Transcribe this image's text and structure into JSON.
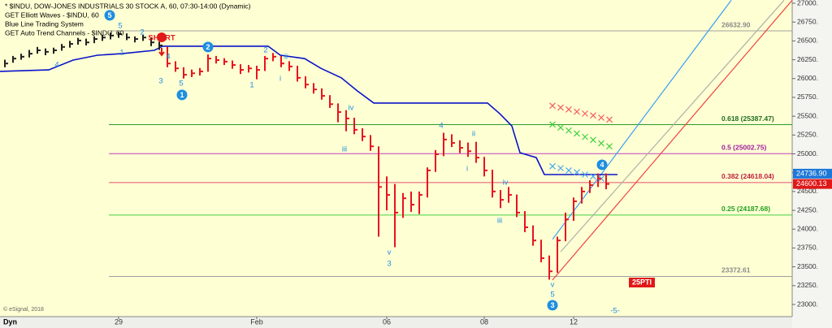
{
  "chart_data": {
    "type": "ohlc",
    "header_lines": [
      "* $INDU, DOW-JONES INDUSTRIALS 30 STOCK A, 60, 07:30-14:00 (Dynamic)",
      "GET Elliott Waves - $INDU, 60",
      "Blue Line Trading System",
      "GET Auto Trend Channels - $INDU, 60"
    ],
    "copyright": "© eSignal, 2018",
    "interval_label": "Dyn",
    "background": "#ffffd4",
    "xlim": [
      -0.6,
      96.9
    ],
    "ylim": [
      23000,
      27000
    ],
    "xticks": [
      {
        "value": 14,
        "label": "29"
      },
      {
        "value": 31,
        "label": "Feb"
      },
      {
        "value": 47,
        "label": "06"
      },
      {
        "value": 59,
        "label": "08"
      },
      {
        "value": 70,
        "label": "12"
      }
    ],
    "yticks": [
      {
        "value": 23000,
        "label": "23000."
      },
      {
        "value": 23250,
        "label": "23250."
      },
      {
        "value": 23500,
        "label": "23500."
      },
      {
        "value": 23750,
        "label": "23750."
      },
      {
        "value": 24000,
        "label": "24000."
      },
      {
        "value": 24250,
        "label": "24250."
      },
      {
        "value": 24500,
        "label": "24500."
      },
      {
        "value": 24750,
        "label": "24750."
      },
      {
        "value": 25000,
        "label": "25000."
      },
      {
        "value": 25250,
        "label": "25250."
      },
      {
        "value": 25500,
        "label": "25500."
      },
      {
        "value": 25750,
        "label": "25750."
      },
      {
        "value": 26000,
        "label": "26000."
      },
      {
        "value": 26250,
        "label": "26250."
      },
      {
        "value": 26500,
        "label": "26500."
      },
      {
        "value": 26750,
        "label": "26750."
      },
      {
        "value": 27000,
        "label": "27000."
      }
    ],
    "series": [
      {
        "color": "#222222",
        "x": [
          0,
          1,
          2,
          3,
          4,
          5,
          6,
          7,
          8,
          9,
          10,
          11,
          12,
          13,
          14,
          15,
          16,
          17,
          18,
          19
        ],
        "high": [
          26250,
          26300,
          26330,
          26380,
          26420,
          26400,
          26410,
          26460,
          26500,
          26540,
          26530,
          26560,
          26580,
          26610,
          26620,
          26600,
          26560,
          26580,
          26540,
          26490
        ],
        "low": [
          26150,
          26210,
          26250,
          26280,
          26330,
          26310,
          26330,
          26370,
          26410,
          26450,
          26440,
          26470,
          26500,
          26520,
          26540,
          26510,
          26480,
          26500,
          26430,
          26380
        ],
        "close": [
          26200,
          26265,
          26290,
          26330,
          26375,
          26355,
          26375,
          26420,
          26460,
          26505,
          26480,
          26525,
          26545,
          26570,
          26590,
          26545,
          26525,
          26545,
          26480,
          26440
        ]
      },
      {
        "color": "#e8141e",
        "x": [
          20,
          21,
          22,
          23,
          24,
          25,
          26,
          27,
          28,
          29,
          30,
          31,
          32,
          33,
          34,
          35,
          36,
          37,
          38,
          39,
          40,
          41,
          42,
          43,
          44,
          45,
          46,
          47,
          48,
          49,
          50,
          51,
          52,
          53,
          54,
          55,
          56,
          57,
          58,
          59,
          60,
          61,
          62,
          63,
          64,
          65,
          66,
          67,
          68,
          69,
          70,
          71,
          72,
          73,
          74
        ],
        "high": [
          26420,
          26230,
          26150,
          26120,
          26140,
          26320,
          26300,
          26270,
          26240,
          26190,
          26180,
          26170,
          26300,
          26340,
          26300,
          26230,
          26170,
          26030,
          25940,
          25870,
          25780,
          25670,
          25580,
          25480,
          25340,
          25250,
          25100,
          24700,
          24600,
          24480,
          24500,
          24500,
          24820,
          25050,
          25280,
          25260,
          25180,
          25150,
          25160,
          24960,
          24790,
          24520,
          24560,
          24460,
          24240,
          24050,
          23860,
          23650,
          23900,
          24220,
          24420,
          24560,
          24650,
          24740,
          24740
        ],
        "low": [
          26150,
          26090,
          26000,
          26020,
          26040,
          26090,
          26200,
          26180,
          26130,
          26060,
          26080,
          25990,
          26100,
          26230,
          26150,
          26100,
          25960,
          25870,
          25800,
          25720,
          25610,
          25420,
          25300,
          25260,
          25170,
          25040,
          23900,
          24250,
          23760,
          24150,
          24230,
          24200,
          24420,
          24760,
          24970,
          25090,
          25010,
          24960,
          24880,
          24700,
          24420,
          24280,
          24350,
          24160,
          23960,
          23780,
          23560,
          23330,
          23420,
          23840,
          24110,
          24340,
          24480,
          24560,
          24530
        ],
        "close": [
          26200,
          26135,
          26050,
          26070,
          26095,
          26265,
          26245,
          26225,
          26180,
          26115,
          26135,
          26115,
          26265,
          26290,
          26200,
          26160,
          26010,
          25920,
          25855,
          25770,
          25660,
          25555,
          25470,
          25320,
          25230,
          25100,
          24560,
          24455,
          24220,
          24410,
          24325,
          24455,
          24780,
          24995,
          25190,
          25145,
          25080,
          25035,
          24950,
          24780,
          24500,
          24390,
          24455,
          24220,
          24025,
          23850,
          23615,
          23440,
          23850,
          24130,
          24370,
          24500,
          24585,
          24670,
          24600
        ]
      }
    ],
    "blue_line": {
      "color": "#0a14c8",
      "x": [
        -0.6,
        5.4,
        8.4,
        11.4,
        14.4,
        18.4,
        19.4,
        32.4,
        33.9,
        36.9,
        38.9,
        41.4,
        43.4,
        45.4,
        59.4,
        60.9,
        62.4,
        63.4,
        65.4,
        66.4,
        75.4
      ],
      "values": [
        26095,
        26115,
        26245,
        26310,
        26330,
        26375,
        26430,
        26430,
        26310,
        26265,
        26135,
        26010,
        25835,
        25675,
        25675,
        25535,
        25370,
        25015,
        24950,
        24725,
        24725
      ]
    },
    "levels": [
      {
        "value": 26632.9,
        "label": "26632.90",
        "color": "#a0a0a0",
        "text_color": "#8a8a8a"
      },
      {
        "value": 25387.47,
        "label": "0.618 (25387.47)",
        "color": "#2a9a2a",
        "text_color": "#1e6e1e"
      },
      {
        "value": 25002.75,
        "label": "0.5 (25002.75)",
        "color": "#c040c0",
        "text_color": "#a020a0"
      },
      {
        "value": 24618.04,
        "label": "0.382 (24618.04)",
        "color": "#e05070",
        "text_color": "#c0203a"
      },
      {
        "value": 24187.68,
        "label": "0.25 (24187.68)",
        "color": "#40d040",
        "text_color": "#20a020"
      },
      {
        "value": 23372.61,
        "label": "23372.61",
        "color": "#a0a0a0",
        "text_color": "#8a8a8a"
      }
    ],
    "channels": [
      {
        "color": "#3aa0f0",
        "x": [
          67.4,
          89.4
        ],
        "values": [
          23865,
          27040
        ]
      },
      {
        "color": "#b0b0a8",
        "x": [
          68.4,
          95.9
        ],
        "values": [
          23700,
          27040
        ]
      },
      {
        "color": "#f04040",
        "x": [
          67.4,
          96.9
        ],
        "values": [
          23325,
          27040
        ]
      }
    ],
    "projections": [
      {
        "color": "#f06060",
        "x": [
          67.4,
          68.4,
          69.4,
          70.4,
          71.4,
          72.4,
          73.4,
          74.4
        ],
        "values": [
          25640,
          25615,
          25590,
          25560,
          25535,
          25510,
          25480,
          25455
        ]
      },
      {
        "color": "#40d040",
        "x": [
          67.4,
          68.4,
          69.4,
          70.4,
          71.4,
          72.4,
          73.4,
          74.4
        ],
        "values": [
          25390,
          25350,
          25310,
          25270,
          25225,
          25185,
          25140,
          25100
        ]
      },
      {
        "color": "#4aa8f0",
        "x": [
          67.4,
          68.4,
          69.4,
          70.4,
          71.4,
          72.4,
          73.4
        ],
        "values": [
          24835,
          24810,
          24780,
          24755,
          24725,
          24700,
          24670
        ]
      }
    ],
    "current_prices": [
      {
        "value": 24736.9,
        "label": "24736.90",
        "color": "#1e78d8"
      },
      {
        "value": 24600.13,
        "label": "24600.13",
        "color": "#e01818"
      }
    ],
    "annotations": [
      {
        "text": "5",
        "x": 12.9,
        "y": 26839,
        "color": "#1e8ee0",
        "circled": true
      },
      {
        "text": "5",
        "x": 14.2,
        "y": 26699,
        "color": "#1e8ee0",
        "circled": false
      },
      {
        "text": "4",
        "x": 6.4,
        "y": 26182,
        "color": "#1e8ee0",
        "circled": false
      },
      {
        "text": "2",
        "x": 16.9,
        "y": 26613,
        "color": "#1e8ee0",
        "circled": false
      },
      {
        "text": "1",
        "x": 14.4,
        "y": 26343,
        "color": "#1e8ee0",
        "circled": false
      },
      {
        "text": "4",
        "x": 20.1,
        "y": 26289,
        "color": "#1e8ee0",
        "circled": false
      },
      {
        "text": "3",
        "x": 19.2,
        "y": 25966,
        "color": "#1e8ee0",
        "circled": false
      },
      {
        "text": "5",
        "x": 21.7,
        "y": 25934,
        "color": "#1e8ee0",
        "circled": false
      },
      {
        "text": "1",
        "x": 21.8,
        "y": 25783,
        "color": "#1e8ee0",
        "circled": true
      },
      {
        "text": "2",
        "x": 25,
        "y": 26419,
        "color": "#1e8ee0",
        "circled": true
      },
      {
        "text": "2",
        "x": 32.1,
        "y": 26376,
        "color": "#1e8ee0",
        "circled": false
      },
      {
        "text": "1",
        "x": 30.4,
        "y": 25912,
        "color": "#1e8ee0",
        "circled": false
      },
      {
        "text": "ii",
        "x": 34.6,
        "y": 26289,
        "color": "#1e8ee0",
        "circled": false
      },
      {
        "text": "i",
        "x": 33.9,
        "y": 25998,
        "color": "#1e8ee0",
        "circled": false
      },
      {
        "text": "iv",
        "x": 42.6,
        "y": 25610,
        "color": "#1e8ee0",
        "circled": false
      },
      {
        "text": "iii",
        "x": 41.8,
        "y": 25060,
        "color": "#1e8ee0",
        "circled": false
      },
      {
        "text": "v",
        "x": 47.3,
        "y": 23690,
        "color": "#1e8ee0",
        "circled": false
      },
      {
        "text": "3",
        "x": 47.3,
        "y": 23539,
        "color": "#1e8ee0",
        "circled": false
      },
      {
        "text": "4",
        "x": 53.7,
        "y": 25373,
        "color": "#1e8ee0",
        "circled": false
      },
      {
        "text": "ii",
        "x": 57.7,
        "y": 25265,
        "color": "#1e8ee0",
        "circled": false
      },
      {
        "text": "i",
        "x": 56.9,
        "y": 24801,
        "color": "#1e8ee0",
        "circled": false
      },
      {
        "text": "iv",
        "x": 61.6,
        "y": 24618,
        "color": "#1e8ee0",
        "circled": false
      },
      {
        "text": "iii",
        "x": 60.9,
        "y": 24111,
        "color": "#1e8ee0",
        "circled": false
      },
      {
        "text": "v",
        "x": 67.4,
        "y": 23259,
        "color": "#1e8ee0",
        "circled": false
      },
      {
        "text": "5",
        "x": 67.4,
        "y": 23129,
        "color": "#1e8ee0",
        "circled": false
      },
      {
        "text": "3",
        "x": 67.4,
        "y": 22989,
        "color": "#1e8ee0",
        "circled": true
      },
      {
        "text": "4",
        "x": 73.5,
        "y": 24855,
        "color": "#1e8ee0",
        "circled": true
      },
      {
        "text": "-5-",
        "x": 75.1,
        "y": 22914,
        "color": "#1e8ee0",
        "circled": false
      },
      {
        "text": "SHORT",
        "x": 19.3,
        "y": 26537,
        "color": "#e01818",
        "circled": false
      },
      {
        "text": "25PTI",
        "x": 78.4,
        "y": 23291,
        "color": "#ffffff",
        "boxed": "#e01818"
      }
    ]
  }
}
